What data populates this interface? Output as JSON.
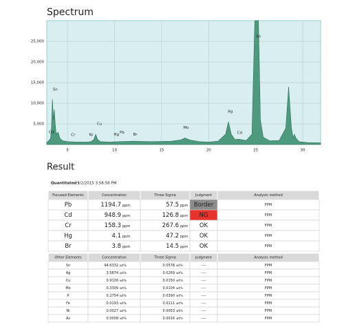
{
  "chart_data": {
    "type": "area",
    "title": "Spectrum",
    "x": [
      2.8,
      3.0,
      3.2,
      3.3,
      3.4,
      3.5,
      3.6,
      3.7,
      3.8,
      4.0,
      4.2,
      4.5,
      5.0,
      6.0,
      7.0,
      7.5,
      7.8,
      8.0,
      8.2,
      8.5,
      9.5,
      10.5,
      12.0,
      14.0,
      16.0,
      17.0,
      17.5,
      18.0,
      19.0,
      20.0,
      21.0,
      21.8,
      22.1,
      22.4,
      22.8,
      23.2,
      24.0,
      24.6,
      24.9,
      25.1,
      25.3,
      25.5,
      25.8,
      26.5,
      27.5,
      28.2,
      28.5,
      28.8,
      29.0,
      29.1,
      29.3,
      29.6,
      30.5,
      31.9
    ],
    "values": [
      500,
      900,
      1500,
      4000,
      11000,
      6000,
      8500,
      5000,
      2500,
      3000,
      1500,
      900,
      700,
      600,
      600,
      700,
      1200,
      2500,
      1200,
      700,
      600,
      700,
      800,
      700,
      800,
      1100,
      1600,
      1100,
      700,
      600,
      800,
      2500,
      5500,
      2500,
      1200,
      1300,
      1000,
      2500,
      30000,
      30000,
      30000,
      6000,
      1800,
      900,
      1000,
      4000,
      14000,
      4000,
      1500,
      2500,
      1500,
      700,
      500,
      400
    ],
    "color": "#4e9a7f",
    "background": "#d9efef",
    "grid": true,
    "xlim": [
      2.8,
      31.9
    ],
    "xticks": [
      5,
      10,
      15,
      20,
      25,
      30
    ],
    "ylim": [
      0,
      30000
    ],
    "yticks": [
      {
        "value": 5000,
        "label": "5,000"
      },
      {
        "value": 10000,
        "label": "10,000"
      },
      {
        "value": 15000,
        "label": "15,000"
      },
      {
        "value": 20000,
        "label": "20,000"
      },
      {
        "value": 25000,
        "label": "25,000"
      }
    ],
    "annotations": [
      {
        "text": "Cd",
        "x": 3.3,
        "y": 3000
      },
      {
        "text": "Sn",
        "x": 3.7,
        "y": 13300
      },
      {
        "text": "Cr",
        "x": 5.6,
        "y": 2300
      },
      {
        "text": "Ni",
        "x": 7.5,
        "y": 2300
      },
      {
        "text": "Cu",
        "x": 8.4,
        "y": 5000
      },
      {
        "text": "Hg",
        "x": 10.2,
        "y": 2400
      },
      {
        "text": "Pb",
        "x": 10.8,
        "y": 2900
      },
      {
        "text": "Br",
        "x": 12.2,
        "y": 2400
      },
      {
        "text": "Mo",
        "x": 17.6,
        "y": 4100
      },
      {
        "text": "Ag",
        "x": 22.3,
        "y": 8000
      },
      {
        "text": "Cd",
        "x": 23.3,
        "y": 2800
      },
      {
        "text": "Sn",
        "x": 25.3,
        "y": 26200
      }
    ]
  },
  "result": {
    "title": "Result",
    "quantitated_label": "Quantitated :",
    "quantitated": "9/2/2015 3:58:58 PM",
    "focused": {
      "headers": [
        "Focused Elements",
        "Concentration",
        "Three Sigma",
        "Judgment",
        "Analysis method"
      ],
      "rows": [
        [
          "Pb",
          "1194.7",
          "ppm",
          "57.5",
          "ppm",
          "Border",
          "FPM"
        ],
        [
          "Cd",
          "948.9",
          "ppm",
          "126.8",
          "ppm",
          "NG",
          "FPM"
        ],
        [
          "Cr",
          "158.3",
          "ppm",
          "267.6",
          "ppm",
          "OK",
          "FPM"
        ],
        [
          "Hg",
          "4.1",
          "ppm",
          "47.2",
          "ppm",
          "OK",
          "FPM"
        ],
        [
          "Br",
          "3.8",
          "ppm",
          "14.5",
          "ppm",
          "OK",
          "FPM"
        ]
      ]
    },
    "other": {
      "headers": [
        "Other Elements",
        "Concentration",
        "Three Sigma",
        "Judgment",
        "Analysis method"
      ],
      "rows": [
        [
          "Sn",
          "94.6332",
          "wt%",
          "0.0578",
          "wt%",
          "----",
          "FPM"
        ],
        [
          "Ag",
          "3.5874",
          "wt%",
          "0.0269",
          "wt%",
          "----",
          "FPM"
        ],
        [
          "Cu",
          "0.9126",
          "wt%",
          "0.0150",
          "wt%",
          "----",
          "FPM"
        ],
        [
          "Mo",
          "0.3305",
          "wt%",
          "0.0104",
          "wt%",
          "----",
          "FPM"
        ],
        [
          "P",
          "0.2754",
          "wt%",
          "0.0390",
          "wt%",
          "----",
          "FPM"
        ],
        [
          "Fe",
          "0.0193",
          "wt%",
          "0.0111",
          "wt%",
          "----",
          "FPM"
        ],
        [
          "Ni",
          "0.0027",
          "wt%",
          "0.0053",
          "wt%",
          "----",
          "FPM"
        ],
        [
          "As",
          "0.0008",
          "wt%",
          "0.0016",
          "wt%",
          "----",
          "FPM"
        ]
      ]
    }
  }
}
